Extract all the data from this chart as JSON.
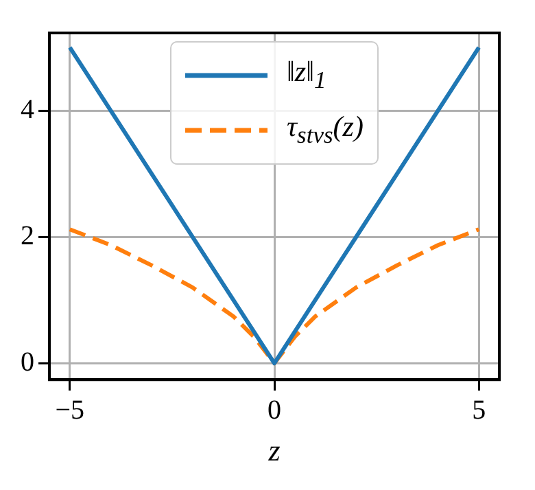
{
  "chart_data": {
    "type": "line",
    "xlabel": "z",
    "series": [
      {
        "name": "‖z‖$_{1}$",
        "color": "#1f77b4",
        "line_style": "solid",
        "x": [
          -5,
          0,
          5
        ],
        "values": [
          5,
          0,
          5
        ]
      },
      {
        "name": "τ$_{stvs}$(z)",
        "color": "#ff7f0e",
        "line_style": "dashed",
        "x": [
          -5,
          -4,
          -3,
          -2,
          -1,
          -0.5,
          0,
          0.5,
          1,
          2,
          3,
          4,
          5
        ],
        "values": [
          2.12,
          1.87,
          1.55,
          1.2,
          0.74,
          0.42,
          0,
          0.42,
          0.74,
          1.2,
          1.55,
          1.87,
          2.12
        ]
      }
    ],
    "xlim": [
      -5.5,
      5.5
    ],
    "ylim": [
      -0.26,
      5.23
    ],
    "xticks": [
      {
        "value": -5,
        "label": "−5"
      },
      0,
      5
    ],
    "yticks": [
      0,
      2,
      4
    ],
    "grid": true,
    "legend": "top",
    "marker": "none"
  }
}
